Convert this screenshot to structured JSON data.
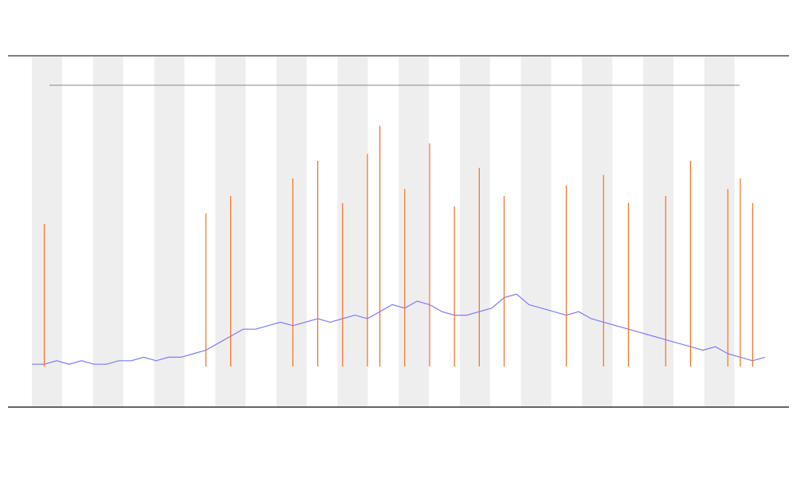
{
  "chart_data": {
    "type": "line",
    "x": [
      0,
      1,
      2,
      3,
      4,
      5,
      6,
      7,
      8,
      9,
      10,
      11,
      12,
      13,
      14,
      15,
      16,
      17,
      18,
      19,
      20,
      21,
      22,
      23,
      24,
      25,
      26,
      27,
      28,
      29,
      30,
      31,
      32,
      33,
      34,
      35,
      36,
      37,
      38,
      39,
      40,
      41,
      42,
      43,
      44,
      45,
      46,
      47,
      48,
      49,
      50,
      51,
      52,
      53,
      54,
      55,
      56,
      57,
      58,
      59
    ],
    "xlim": [
      0,
      59
    ],
    "ylim": [
      0,
      100
    ],
    "series": [
      {
        "color": "#7b7bff",
        "style": "line",
        "values": [
          12,
          12,
          13,
          12,
          13,
          12,
          12,
          13,
          13,
          14,
          13,
          14,
          14,
          15,
          16,
          18,
          20,
          22,
          22,
          23,
          24,
          23,
          24,
          25,
          24,
          25,
          26,
          25,
          27,
          29,
          28,
          30,
          29,
          27,
          26,
          26,
          27,
          28,
          31,
          32,
          29,
          28,
          27,
          26,
          27,
          25,
          24,
          23,
          22,
          21,
          20,
          19,
          18,
          17,
          16,
          17,
          15,
          14,
          13,
          14
        ]
      },
      {
        "color": "#ff6a1a",
        "style": "stem",
        "values": [
          null,
          52,
          null,
          null,
          null,
          null,
          null,
          null,
          null,
          null,
          null,
          null,
          null,
          null,
          55,
          null,
          60,
          null,
          null,
          null,
          null,
          65,
          null,
          70,
          null,
          58,
          null,
          72,
          80,
          null,
          62,
          null,
          75,
          null,
          57,
          null,
          68,
          null,
          60,
          null,
          null,
          null,
          null,
          63,
          null,
          null,
          66,
          null,
          58,
          null,
          null,
          60,
          null,
          70,
          null,
          null,
          62,
          65,
          58,
          null
        ]
      }
    ]
  }
}
